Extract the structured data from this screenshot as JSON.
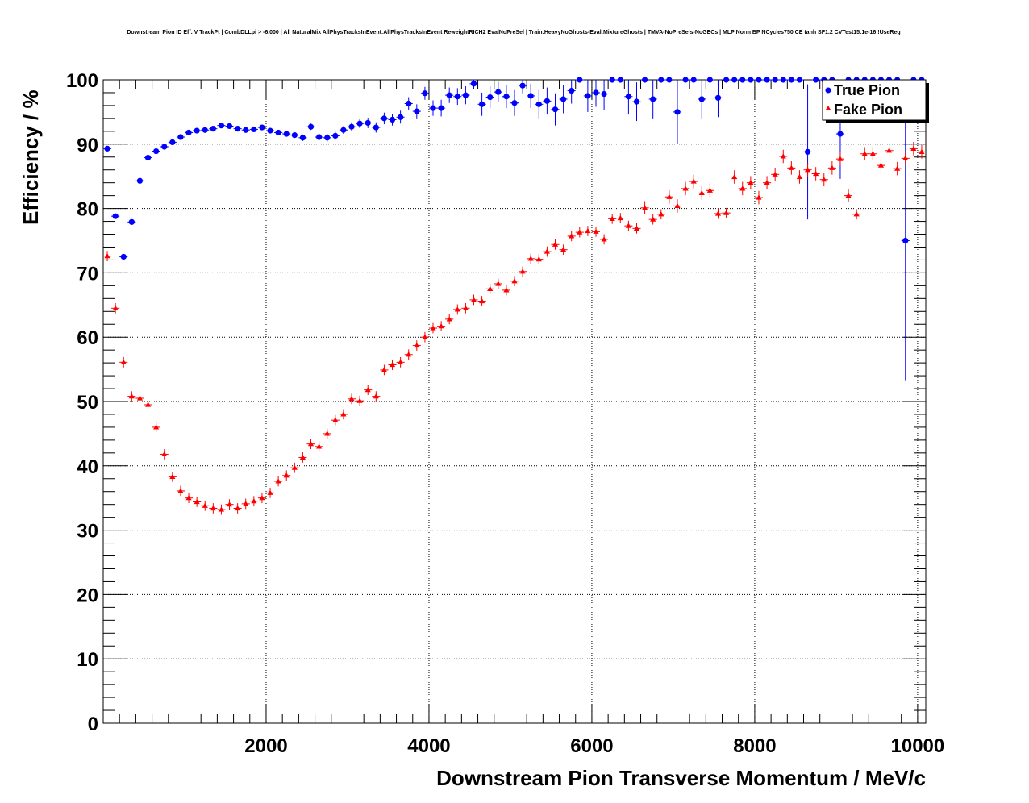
{
  "chart_data": {
    "type": "scatter",
    "title": "Downstream Pion ID Eff. V TrackPt | CombDLLpi > -6.000 | All NaturalMix AllPhysTracksInEvent:AllPhysTracksInEvent ReweightRICH2 EvalNoPreSel | Train:HeavyNoGhosts-Eval:MixtureGhosts | TMVA-NoPreSels-NoGECs | MLP Norm BP NCycles750 CE tanh SF1.2 CVTest15:1e-16 !UseReg",
    "xlabel": "Downstream Pion Transverse Momentum / MeV/c",
    "ylabel": "Efficiency / %",
    "xlim": [
      0,
      10100
    ],
    "ylim": [
      0,
      100
    ],
    "x_ticks": [
      "2000",
      "4000",
      "6000",
      "8000",
      "10000"
    ],
    "y_ticks": [
      "0",
      "10",
      "20",
      "30",
      "40",
      "50",
      "60",
      "70",
      "80",
      "90",
      "100"
    ],
    "grid": true,
    "legend_position": "top-right",
    "bin_width": 100,
    "series": [
      {
        "name": "True Pion",
        "color": "#0000ff",
        "marker": "circle",
        "x": [
          0,
          100,
          200,
          300,
          400,
          500,
          600,
          700,
          800,
          900,
          1000,
          1100,
          1200,
          1300,
          1400,
          1500,
          1600,
          1700,
          1800,
          1900,
          2000,
          2100,
          2200,
          2300,
          2400,
          2500,
          2600,
          2700,
          2800,
          2900,
          3000,
          3100,
          3200,
          3300,
          3400,
          3500,
          3600,
          3700,
          3800,
          3900,
          4000,
          4100,
          4200,
          4300,
          4400,
          4500,
          4600,
          4700,
          4800,
          4900,
          5000,
          5100,
          5200,
          5300,
          5400,
          5500,
          5600,
          5700,
          5800,
          5900,
          6000,
          6100,
          6200,
          6300,
          6400,
          6500,
          6600,
          6700,
          6800,
          6900,
          7000,
          7100,
          7200,
          7300,
          7400,
          7500,
          7600,
          7700,
          7800,
          7900,
          8000,
          8100,
          8200,
          8300,
          8400,
          8500,
          8600,
          8700,
          8800,
          8900,
          9000,
          9100,
          9200,
          9300,
          9400,
          9500,
          9600,
          9700,
          9800,
          9900,
          10000
        ],
        "y": [
          89.3,
          78.8,
          72.5,
          77.9,
          84.3,
          87.9,
          88.9,
          89.6,
          90.3,
          91.1,
          91.8,
          92.1,
          92.2,
          92.4,
          92.9,
          92.8,
          92.4,
          92.2,
          92.3,
          92.6,
          92.1,
          91.8,
          91.6,
          91.4,
          91.0,
          92.7,
          91.1,
          91.0,
          91.3,
          92.2,
          92.7,
          93.2,
          93.3,
          92.6,
          94.0,
          93.8,
          94.2,
          96.3,
          95.1,
          97.9,
          95.6,
          95.6,
          97.6,
          97.4,
          97.6,
          99.4,
          96.2,
          97.3,
          98.1,
          97.4,
          96.4,
          99.1,
          97.5,
          96.2,
          96.7,
          95.4,
          97.0,
          98.3,
          100,
          97.5,
          98.0,
          97.8,
          100,
          100,
          97.4,
          96.6,
          100,
          97.0,
          100,
          100,
          95.0,
          100,
          100,
          97.0,
          100,
          97.2,
          100,
          100,
          100,
          100,
          100,
          100,
          100,
          100,
          100,
          100,
          88.8,
          100,
          100,
          100,
          91.6,
          100,
          100,
          100,
          100,
          100,
          100,
          100,
          75.0,
          100,
          100
        ],
        "yerr": [
          0.3,
          0.3,
          0.3,
          0.3,
          0.3,
          0.3,
          0.3,
          0.3,
          0.3,
          0.3,
          0.3,
          0.3,
          0.3,
          0.3,
          0.3,
          0.3,
          0.3,
          0.3,
          0.3,
          0.3,
          0.4,
          0.4,
          0.4,
          0.4,
          0.5,
          0.5,
          0.5,
          0.6,
          0.6,
          0.6,
          0.7,
          0.7,
          0.8,
          0.8,
          0.9,
          0.9,
          1.0,
          1.0,
          1.1,
          1.0,
          1.2,
          1.3,
          1.2,
          1.3,
          1.4,
          0.8,
          1.8,
          1.7,
          1.6,
          1.8,
          2.0,
          1.2,
          1.9,
          2.2,
          2.1,
          2.5,
          2.2,
          2.0,
          0,
          2.5,
          2.2,
          2.5,
          0,
          0,
          2.8,
          3.0,
          0,
          3.0,
          0,
          0,
          5.0,
          0,
          0,
          3.0,
          0,
          3.0,
          0,
          0,
          0,
          0,
          0,
          0,
          0,
          0,
          0,
          0,
          10.5,
          0,
          0,
          0,
          7.0,
          0,
          0,
          0,
          0,
          0,
          0,
          0,
          21.7,
          0,
          0
        ]
      },
      {
        "name": "Fake Pion",
        "color": "#ff0000",
        "marker": "triangle",
        "x": [
          0,
          100,
          200,
          300,
          400,
          500,
          600,
          700,
          800,
          900,
          1000,
          1100,
          1200,
          1300,
          1400,
          1500,
          1600,
          1700,
          1800,
          1900,
          2000,
          2100,
          2200,
          2300,
          2400,
          2500,
          2600,
          2700,
          2800,
          2900,
          3000,
          3100,
          3200,
          3300,
          3400,
          3500,
          3600,
          3700,
          3800,
          3900,
          4000,
          4100,
          4200,
          4300,
          4400,
          4500,
          4600,
          4700,
          4800,
          4900,
          5000,
          5100,
          5200,
          5300,
          5400,
          5500,
          5600,
          5700,
          5800,
          5900,
          6000,
          6100,
          6200,
          6300,
          6400,
          6500,
          6600,
          6700,
          6800,
          6900,
          7000,
          7100,
          7200,
          7300,
          7400,
          7500,
          7600,
          7700,
          7800,
          7900,
          8000,
          8100,
          8200,
          8300,
          8400,
          8500,
          8600,
          8700,
          8800,
          8900,
          9000,
          9100,
          9200,
          9300,
          9400,
          9500,
          9600,
          9700,
          9800,
          9900,
          10000
        ],
        "y": [
          72.6,
          64.5,
          56.1,
          50.8,
          50.5,
          49.5,
          46.0,
          41.8,
          38.3,
          36.1,
          35.0,
          34.4,
          33.8,
          33.4,
          33.2,
          34.0,
          33.4,
          34.1,
          34.5,
          35.0,
          35.8,
          37.6,
          38.5,
          39.7,
          41.3,
          43.4,
          43.0,
          45.0,
          47.1,
          48.0,
          50.4,
          50.1,
          51.8,
          50.8,
          54.9,
          55.7,
          56.1,
          57.3,
          58.7,
          60.0,
          61.4,
          61.7,
          62.8,
          64.3,
          64.5,
          65.8,
          65.6,
          67.5,
          68.3,
          67.3,
          68.7,
          70.2,
          72.2,
          72.1,
          73.3,
          74.4,
          73.6,
          75.7,
          76.3,
          76.5,
          76.4,
          75.2,
          78.4,
          78.5,
          77.3,
          76.9,
          80.1,
          78.3,
          79.1,
          81.8,
          80.4,
          83.1,
          84.2,
          82.4,
          82.8,
          79.2,
          79.3,
          84.9,
          83.1,
          84.0,
          81.7,
          84.0,
          85.3,
          88.1,
          86.3,
          84.9,
          86.0,
          85.4,
          84.5,
          86.3,
          87.7,
          82.0,
          79.1,
          88.5,
          88.5,
          86.7,
          89.0,
          86.2,
          87.8,
          89.3,
          88.8
        ]
      }
    ]
  }
}
